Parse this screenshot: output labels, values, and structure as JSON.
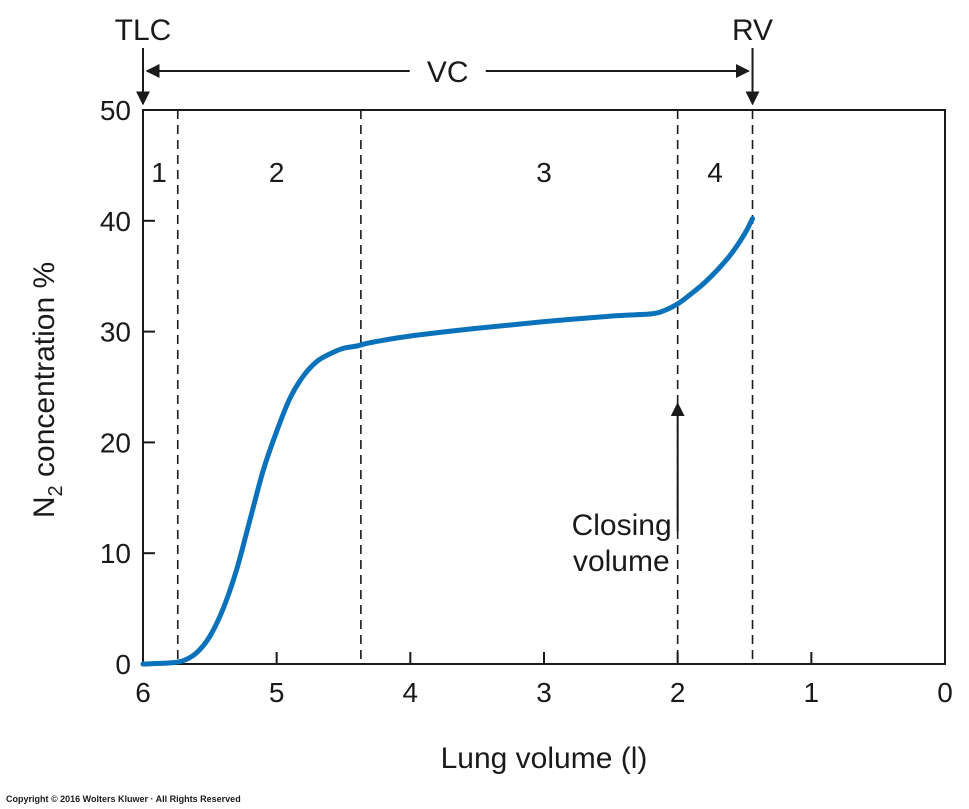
{
  "chart_data": {
    "type": "line",
    "xlabel": "Lung volume (l)",
    "ylabel_main": "N",
    "ylabel_sub": "2",
    "ylabel_rest": " concentration %",
    "xlim": [
      6,
      0
    ],
    "ylim": [
      0,
      50
    ],
    "x_ticks": [
      6,
      5,
      4,
      3,
      2,
      1,
      0
    ],
    "y_ticks": [
      0,
      10,
      20,
      30,
      40,
      50
    ],
    "grid": false,
    "legend": "none",
    "series": [
      {
        "color": "#0a72ba",
        "x": [
          6.0,
          5.8,
          5.7,
          5.6,
          5.5,
          5.4,
          5.3,
          5.2,
          5.1,
          5.0,
          4.9,
          4.8,
          4.7,
          4.6,
          4.5,
          4.4,
          4.3,
          4.0,
          3.5,
          3.0,
          2.5,
          2.2,
          2.1,
          2.0,
          1.9,
          1.8,
          1.7,
          1.6,
          1.5,
          1.44
        ],
        "y": [
          0.0,
          0.1,
          0.3,
          1.0,
          2.5,
          5.0,
          8.5,
          13.0,
          17.5,
          21.0,
          24.0,
          26.0,
          27.3,
          28.0,
          28.5,
          28.7,
          29.0,
          29.6,
          30.3,
          30.9,
          31.4,
          31.6,
          31.9,
          32.5,
          33.4,
          34.4,
          35.6,
          37.0,
          38.8,
          40.2
        ]
      }
    ],
    "phase_boundaries": [
      5.74,
      4.37,
      2.0,
      1.44
    ],
    "phase_labels": [
      {
        "text": "1",
        "x": 5.88
      },
      {
        "text": "2",
        "x": 5.0
      },
      {
        "text": "3",
        "x": 3.0
      },
      {
        "text": "4",
        "x": 1.72
      }
    ],
    "annotations": {
      "tlc": {
        "text": "TLC",
        "x": 6.0
      },
      "rv": {
        "text": "RV",
        "x": 1.44
      },
      "vc": {
        "text": "VC"
      },
      "closing_volume": {
        "line1": "Closing",
        "line2": "volume",
        "x": 2.0,
        "y": 23.5
      }
    }
  },
  "copyright": "Copyright © 2016 Wolters Kluwer · All Rights Reserved",
  "colors": {
    "curve": "#0a72ba",
    "ink": "#1a1a1a"
  }
}
